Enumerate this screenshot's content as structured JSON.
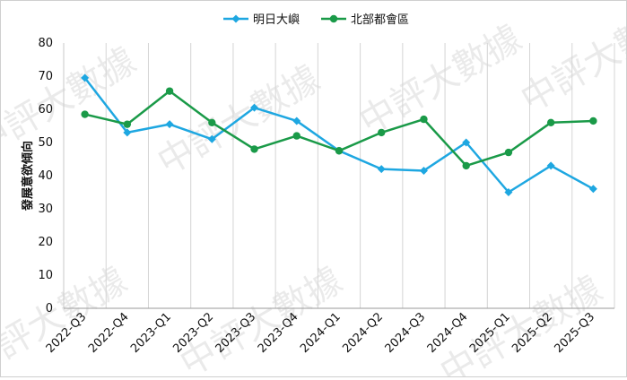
{
  "chart_data": {
    "type": "line",
    "categories": [
      "2022-Q3",
      "2022-Q4",
      "2023-Q1",
      "2023-Q2",
      "2023-Q3",
      "2023-Q4",
      "2024-Q1",
      "2024-Q2",
      "2024-Q3",
      "2024-Q4",
      "2025-Q1",
      "2025-Q2",
      "2025-Q3"
    ],
    "series": [
      {
        "name": "明日大嶼",
        "color": "#1ea7e1",
        "marker": "diamond",
        "values": [
          69.5,
          53.0,
          55.5,
          51.0,
          60.5,
          56.5,
          47.5,
          42.0,
          41.5,
          50.0,
          35.0,
          43.0,
          36.0
        ]
      },
      {
        "name": "北部都會區",
        "color": "#1a9a48",
        "marker": "circle",
        "values": [
          58.5,
          55.5,
          65.5,
          56.0,
          48.0,
          52.0,
          47.5,
          53.0,
          57.0,
          43.0,
          47.0,
          56.0,
          56.5
        ]
      }
    ],
    "ylabel": "發展意欲傾向",
    "ylim": [
      0,
      80
    ],
    "yticks": [
      0,
      10,
      20,
      30,
      40,
      50,
      60,
      70,
      80
    ],
    "grid": "vertical",
    "legend": "top-center",
    "watermark": "中評大數據"
  }
}
